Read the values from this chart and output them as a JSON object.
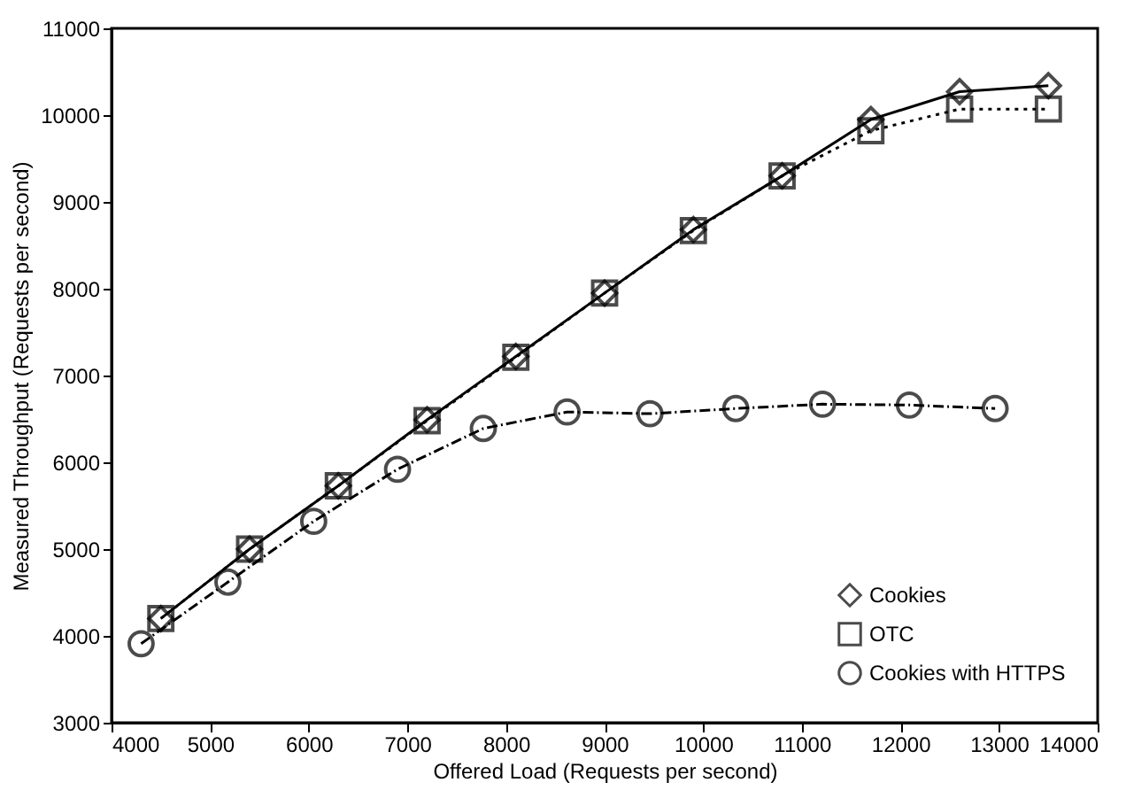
{
  "chart_data": {
    "type": "line",
    "xlabel": "Offered Load (Requests per second)",
    "ylabel": "Measured Throughput (Requests per second)",
    "xlim": [
      4000,
      14000
    ],
    "xticks": [
      4000,
      5000,
      6000,
      7000,
      8000,
      9000,
      10000,
      11000,
      12000,
      13000,
      14000
    ],
    "ylim": [
      3000,
      11000
    ],
    "yticks": [
      3000,
      4000,
      5000,
      6000,
      7000,
      8000,
      9000,
      10000,
      11000
    ],
    "grid": false,
    "legend": "bottom right",
    "series": [
      {
        "name": "Cookies",
        "color": "#000000",
        "marker": "diamond",
        "line_style": "solid",
        "x": [
          4500,
          5400,
          6300,
          7200,
          8100,
          9000,
          9900,
          10800,
          11700,
          12600,
          13500
        ],
        "values": [
          4200,
          5000,
          5730,
          6490,
          7220,
          7950,
          8680,
          9300,
          9950,
          10270,
          10340
        ]
      },
      {
        "name": "OTC",
        "color": "#000000",
        "marker": "square",
        "line_style": "dotted",
        "x": [
          4500,
          5400,
          6300,
          7200,
          8100,
          9000,
          9900,
          10800,
          11700,
          12600,
          13500
        ],
        "values": [
          4200,
          5000,
          5730,
          6480,
          7210,
          7950,
          8670,
          9300,
          9820,
          10070,
          10070
        ]
      },
      {
        "name": "Cookies with HTTPS",
        "color": "#000000",
        "marker": "circle",
        "line_style": "dashed",
        "x": [
          4300,
          5180,
          6050,
          6900,
          7770,
          8620,
          9460,
          10330,
          11210,
          12090,
          12960
        ],
        "values": [
          3910,
          4620,
          5320,
          5920,
          6390,
          6580,
          6560,
          6620,
          6670,
          6660,
          6620
        ]
      }
    ]
  }
}
